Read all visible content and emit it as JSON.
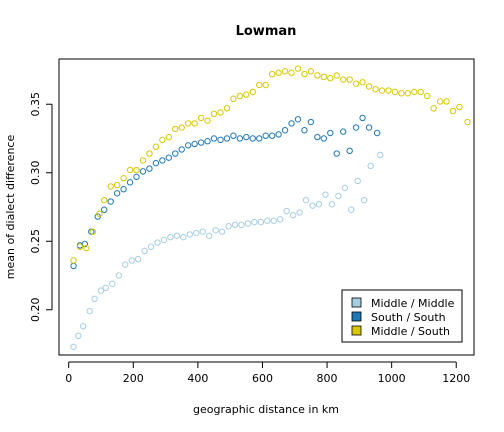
{
  "chart_data": {
    "type": "scatter",
    "title": "Lowman",
    "xlabel": "geographic distance in km",
    "ylabel": "mean of dialect difference",
    "xlim": [
      -30,
      1255
    ],
    "ylim": [
      0.167,
      0.383
    ],
    "xticks": [
      0,
      200,
      400,
      600,
      800,
      1000,
      1200
    ],
    "yticks": [
      0.2,
      0.25,
      0.3,
      0.35
    ],
    "ytick_labels": [
      "0.20",
      "0.25",
      "0.30",
      "0.35"
    ],
    "grid": false,
    "legend_position": "bottom-right",
    "series": [
      {
        "name": "Middle / Middle",
        "color": "#a6cee3",
        "points": [
          [
            15,
            0.173
          ],
          [
            30,
            0.181
          ],
          [
            45,
            0.188
          ],
          [
            65,
            0.199
          ],
          [
            80,
            0.208
          ],
          [
            100,
            0.214
          ],
          [
            115,
            0.216
          ],
          [
            135,
            0.219
          ],
          [
            155,
            0.225
          ],
          [
            175,
            0.233
          ],
          [
            195,
            0.236
          ],
          [
            215,
            0.237
          ],
          [
            235,
            0.243
          ],
          [
            255,
            0.246
          ],
          [
            275,
            0.249
          ],
          [
            295,
            0.251
          ],
          [
            315,
            0.253
          ],
          [
            335,
            0.254
          ],
          [
            355,
            0.253
          ],
          [
            375,
            0.255
          ],
          [
            395,
            0.256
          ],
          [
            415,
            0.257
          ],
          [
            435,
            0.254
          ],
          [
            455,
            0.258
          ],
          [
            475,
            0.257
          ],
          [
            495,
            0.261
          ],
          [
            515,
            0.262
          ],
          [
            535,
            0.262
          ],
          [
            555,
            0.263
          ],
          [
            575,
            0.264
          ],
          [
            595,
            0.264
          ],
          [
            615,
            0.265
          ],
          [
            635,
            0.265
          ],
          [
            655,
            0.266
          ],
          [
            675,
            0.272
          ],
          [
            695,
            0.269
          ],
          [
            715,
            0.271
          ],
          [
            735,
            0.28
          ],
          [
            755,
            0.276
          ],
          [
            775,
            0.277
          ],
          [
            795,
            0.284
          ],
          [
            815,
            0.277
          ],
          [
            835,
            0.283
          ],
          [
            855,
            0.289
          ],
          [
            875,
            0.273
          ],
          [
            895,
            0.294
          ],
          [
            915,
            0.28
          ],
          [
            935,
            0.305
          ],
          [
            965,
            0.313
          ]
        ]
      },
      {
        "name": "South / South",
        "color": "#1f78b4",
        "points": [
          [
            15,
            0.232
          ],
          [
            35,
            0.247
          ],
          [
            50,
            0.248
          ],
          [
            70,
            0.257
          ],
          [
            90,
            0.268
          ],
          [
            110,
            0.273
          ],
          [
            130,
            0.279
          ],
          [
            150,
            0.285
          ],
          [
            170,
            0.288
          ],
          [
            190,
            0.293
          ],
          [
            210,
            0.297
          ],
          [
            230,
            0.301
          ],
          [
            250,
            0.303
          ],
          [
            270,
            0.307
          ],
          [
            290,
            0.309
          ],
          [
            310,
            0.311
          ],
          [
            330,
            0.314
          ],
          [
            350,
            0.317
          ],
          [
            370,
            0.32
          ],
          [
            390,
            0.321
          ],
          [
            410,
            0.322
          ],
          [
            430,
            0.323
          ],
          [
            450,
            0.325
          ],
          [
            470,
            0.324
          ],
          [
            490,
            0.325
          ],
          [
            510,
            0.327
          ],
          [
            530,
            0.325
          ],
          [
            550,
            0.326
          ],
          [
            570,
            0.325
          ],
          [
            590,
            0.325
          ],
          [
            610,
            0.327
          ],
          [
            630,
            0.327
          ],
          [
            650,
            0.328
          ],
          [
            670,
            0.331
          ],
          [
            690,
            0.336
          ],
          [
            710,
            0.339
          ],
          [
            730,
            0.331
          ],
          [
            750,
            0.337
          ],
          [
            770,
            0.326
          ],
          [
            790,
            0.325
          ],
          [
            810,
            0.329
          ],
          [
            830,
            0.314
          ],
          [
            850,
            0.33
          ],
          [
            870,
            0.316
          ],
          [
            890,
            0.333
          ],
          [
            910,
            0.34
          ],
          [
            930,
            0.333
          ],
          [
            955,
            0.329
          ]
        ]
      },
      {
        "name": "Middle / South",
        "color": "#d9c800",
        "points": [
          [
            15,
            0.236
          ],
          [
            35,
            0.246
          ],
          [
            55,
            0.245
          ],
          [
            75,
            0.257
          ],
          [
            95,
            0.27
          ],
          [
            110,
            0.28
          ],
          [
            130,
            0.29
          ],
          [
            150,
            0.291
          ],
          [
            170,
            0.296
          ],
          [
            190,
            0.302
          ],
          [
            210,
            0.302
          ],
          [
            230,
            0.309
          ],
          [
            250,
            0.314
          ],
          [
            270,
            0.319
          ],
          [
            290,
            0.324
          ],
          [
            310,
            0.326
          ],
          [
            330,
            0.332
          ],
          [
            350,
            0.333
          ],
          [
            370,
            0.336
          ],
          [
            390,
            0.336
          ],
          [
            410,
            0.34
          ],
          [
            430,
            0.338
          ],
          [
            450,
            0.343
          ],
          [
            470,
            0.344
          ],
          [
            490,
            0.347
          ],
          [
            510,
            0.354
          ],
          [
            530,
            0.356
          ],
          [
            550,
            0.357
          ],
          [
            570,
            0.359
          ],
          [
            590,
            0.364
          ],
          [
            610,
            0.364
          ],
          [
            630,
            0.372
          ],
          [
            650,
            0.373
          ],
          [
            670,
            0.374
          ],
          [
            690,
            0.373
          ],
          [
            710,
            0.376
          ],
          [
            730,
            0.372
          ],
          [
            750,
            0.374
          ],
          [
            770,
            0.371
          ],
          [
            790,
            0.37
          ],
          [
            810,
            0.369
          ],
          [
            830,
            0.371
          ],
          [
            850,
            0.368
          ],
          [
            870,
            0.368
          ],
          [
            890,
            0.365
          ],
          [
            910,
            0.366
          ],
          [
            930,
            0.363
          ],
          [
            950,
            0.361
          ],
          [
            970,
            0.36
          ],
          [
            990,
            0.36
          ],
          [
            1010,
            0.359
          ],
          [
            1030,
            0.358
          ],
          [
            1050,
            0.358
          ],
          [
            1070,
            0.359
          ],
          [
            1090,
            0.359
          ],
          [
            1110,
            0.356
          ],
          [
            1130,
            0.347
          ],
          [
            1150,
            0.352
          ],
          [
            1170,
            0.352
          ],
          [
            1190,
            0.345
          ],
          [
            1210,
            0.348
          ],
          [
            1235,
            0.337
          ]
        ]
      }
    ]
  }
}
